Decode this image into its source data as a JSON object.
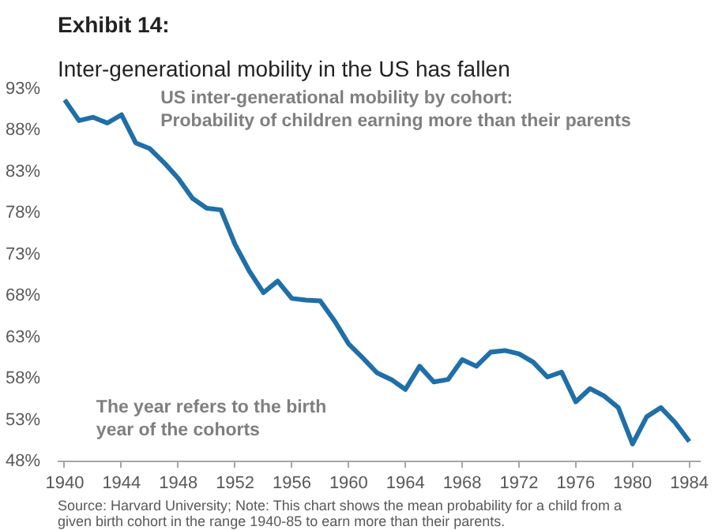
{
  "chart_data": {
    "type": "line",
    "title": "Exhibit 14:",
    "subtitle": "Inter-generational mobility in the US has fallen",
    "x": [
      1940,
      1941,
      1942,
      1943,
      1944,
      1945,
      1946,
      1947,
      1948,
      1949,
      1950,
      1951,
      1952,
      1953,
      1954,
      1955,
      1956,
      1957,
      1958,
      1959,
      1960,
      1961,
      1962,
      1963,
      1964,
      1965,
      1966,
      1967,
      1968,
      1969,
      1970,
      1971,
      1972,
      1973,
      1974,
      1975,
      1976,
      1977,
      1978,
      1979,
      1980,
      1981,
      1982,
      1983,
      1984
    ],
    "series": [
      {
        "color": "#1f6fa8",
        "values": [
          91.7,
          89.2,
          89.6,
          88.9,
          89.9,
          86.5,
          85.8,
          84.1,
          82.2,
          79.8,
          78.6,
          78.4,
          74.2,
          71.0,
          68.4,
          69.8,
          67.7,
          67.5,
          67.4,
          65.0,
          62.2,
          60.5,
          58.7,
          57.9,
          56.7,
          59.5,
          57.6,
          57.9,
          60.3,
          59.5,
          61.2,
          61.4,
          61.0,
          60.0,
          58.2,
          58.8,
          55.2,
          56.8,
          55.9,
          54.5,
          50.1,
          53.4,
          54.5,
          52.7,
          50.4
        ]
      }
    ],
    "xlim": [
      1939.5,
      1984.8
    ],
    "xticks": [
      1940,
      1944,
      1948,
      1952,
      1956,
      1960,
      1964,
      1968,
      1972,
      1976,
      1980,
      1984
    ],
    "ylim": [
      48,
      93
    ],
    "yticks": [
      {
        "value": 48,
        "label": "48%"
      },
      {
        "value": 53,
        "label": "53%"
      },
      {
        "value": 58,
        "label": "58%"
      },
      {
        "value": 63,
        "label": "63%"
      },
      {
        "value": 68,
        "label": "68%"
      },
      {
        "value": 73,
        "label": "73%"
      },
      {
        "value": 78,
        "label": "78%"
      },
      {
        "value": 83,
        "label": "83%"
      },
      {
        "value": 88,
        "label": "88%"
      },
      {
        "value": 93,
        "label": "93%"
      }
    ],
    "grid": false,
    "marker": "none",
    "line_style": "solid",
    "annotations": [
      "US inter-generational mobility by cohort:\nProbability of children earning more than their parents",
      "The year refers to the birth\nyear of the cohorts",
      "Source: Harvard University; Note: This chart shows the mean probability for a child from a given birth cohort in the range 1940-85 to earn more than their parents."
    ]
  }
}
